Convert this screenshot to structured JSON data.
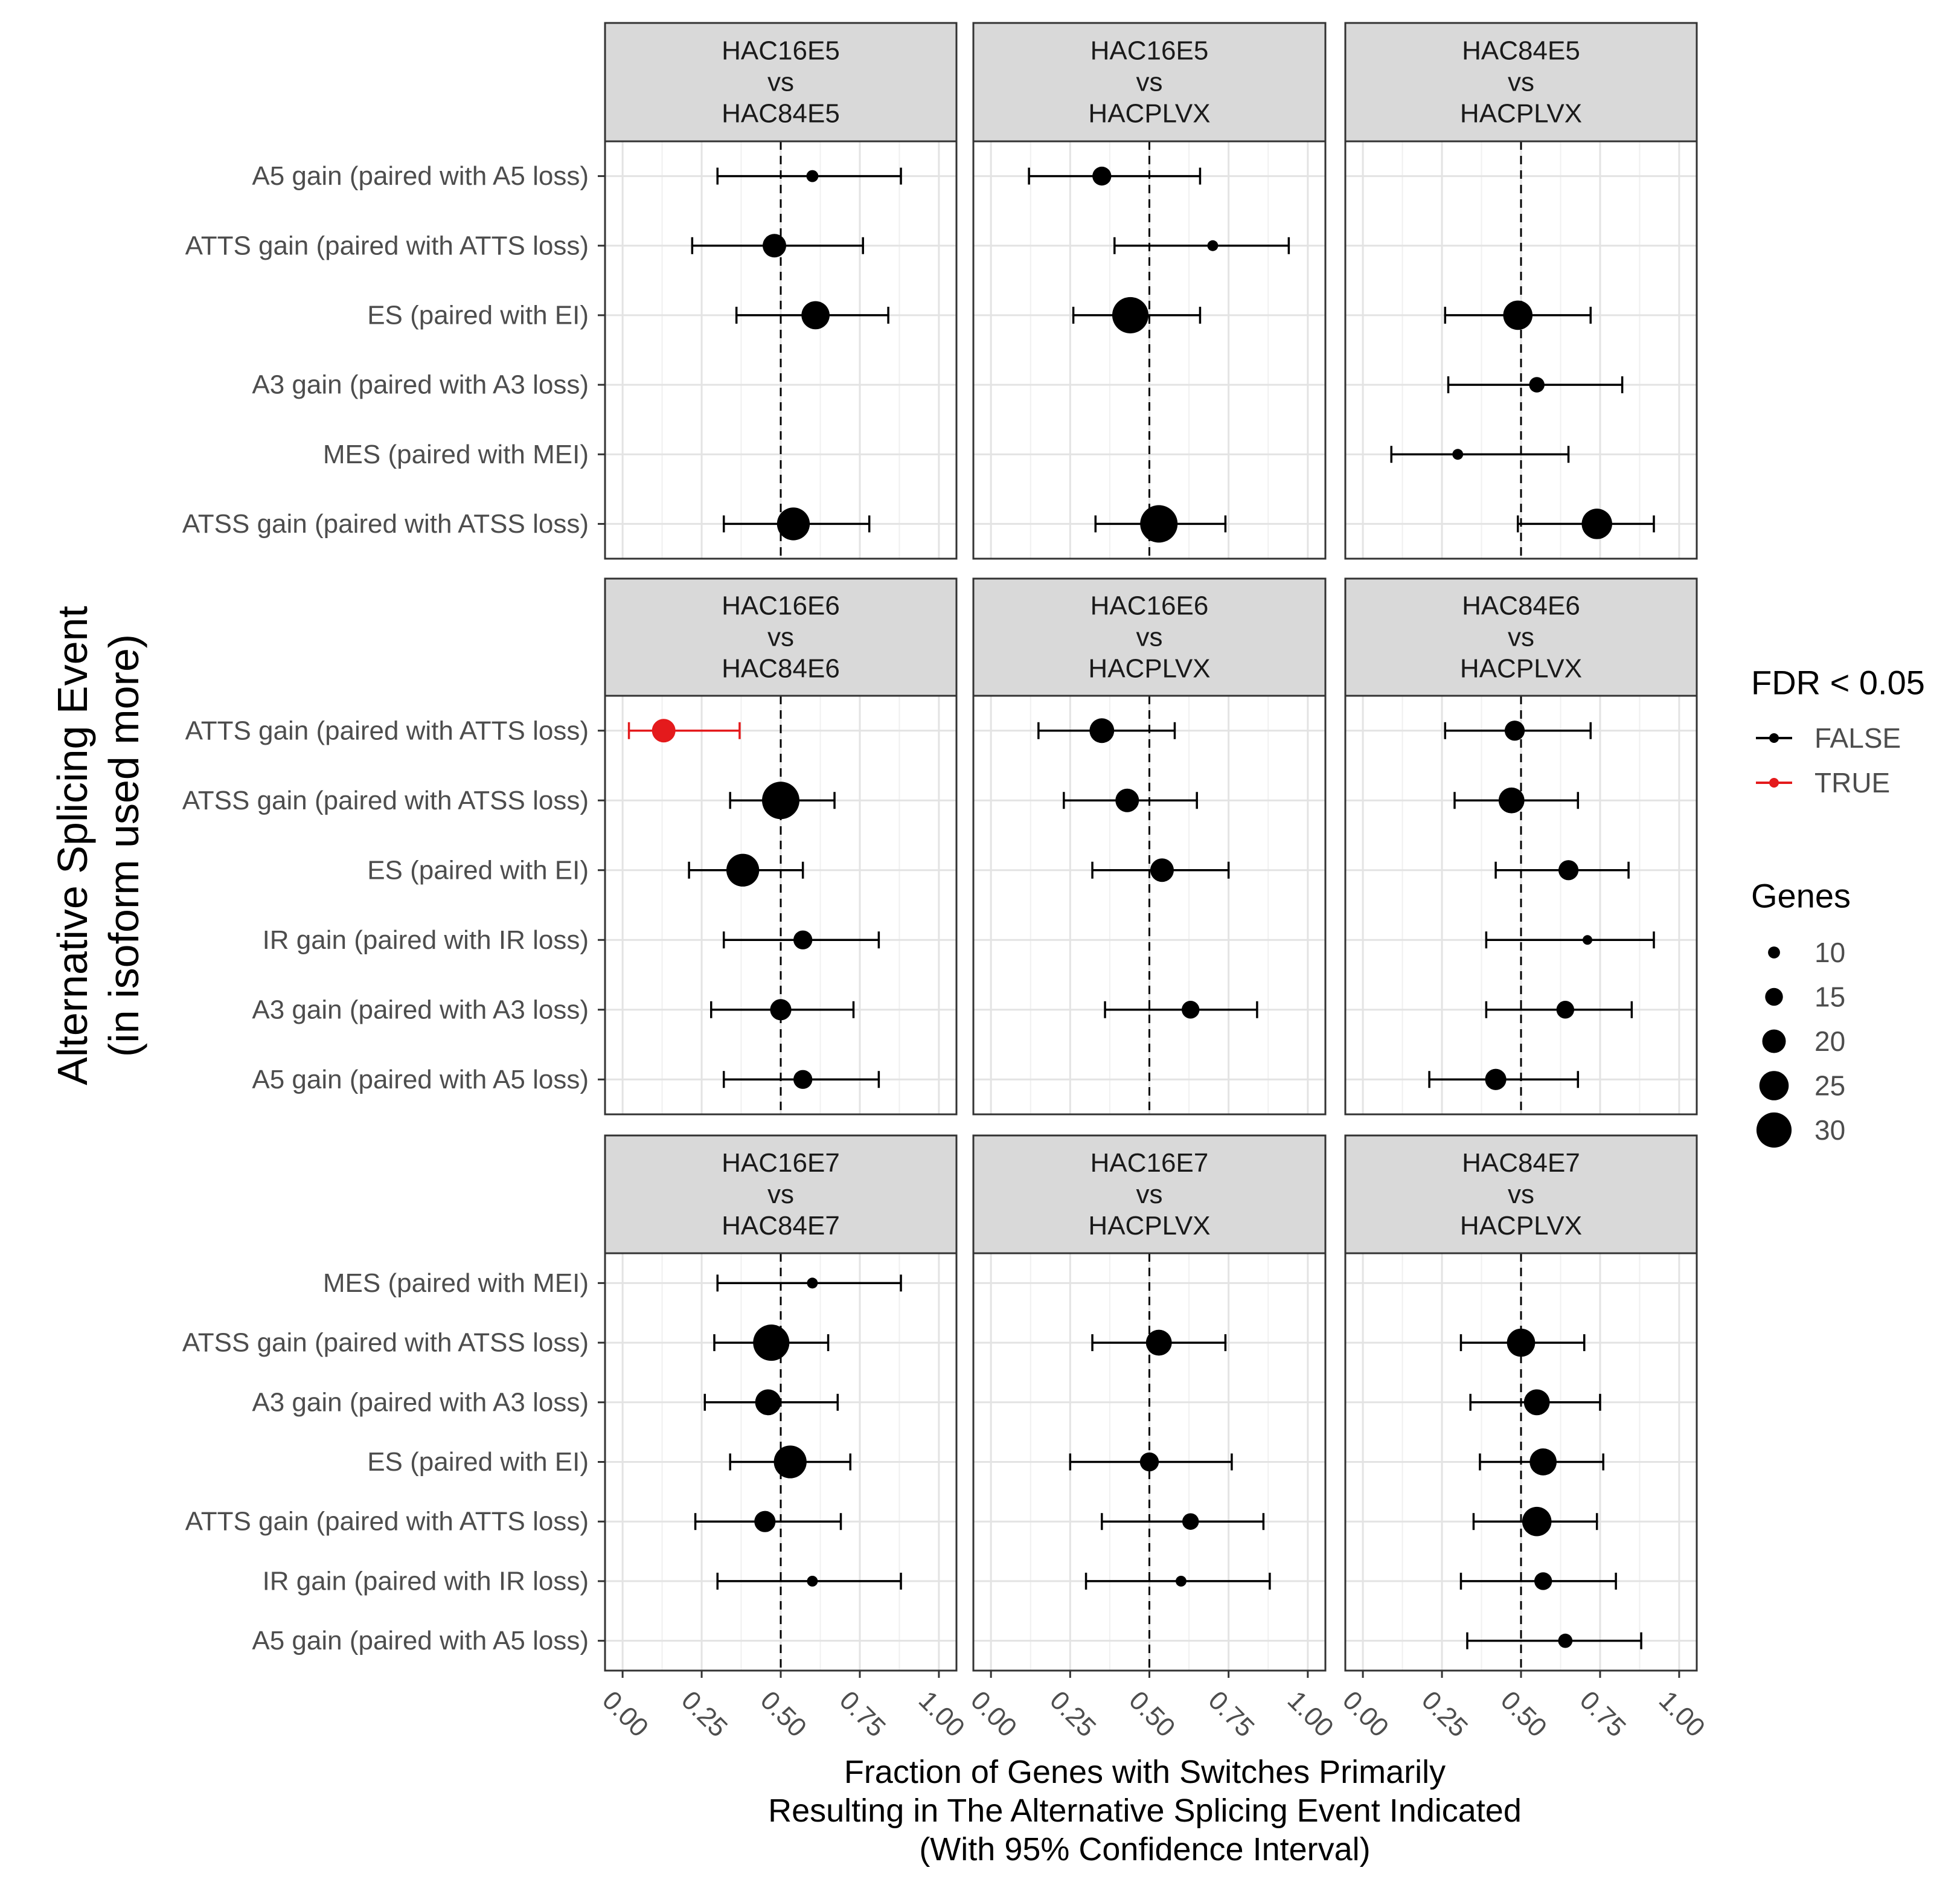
{
  "chart_data": {
    "type": "scatter",
    "subtype": "faceted dot plot with horizontal 95% confidence intervals",
    "xlabel": [
      "Fraction of Genes with Switches Primarily",
      "Resulting in The Alternative Splicing Event Indicated",
      "(With 95% Confidence Interval)"
    ],
    "ylabel": [
      "Alternative Splicing Event",
      "(in isoform used more)"
    ],
    "xlim": [
      0,
      1
    ],
    "x_ticks": [
      0,
      0.25,
      0.5,
      0.75,
      1
    ],
    "x_tick_labels": [
      "0.00",
      "0.25",
      "0.50",
      "0.75",
      "1.00"
    ],
    "reference_line": 0.5,
    "legend": {
      "position": "right",
      "color_title": "FDR < 0.05",
      "color_items": [
        {
          "label": "FALSE",
          "color": "#000000"
        },
        {
          "label": "TRUE",
          "color": "#e41a1c"
        }
      ],
      "size_title": "Genes",
      "size_items": [
        10,
        15,
        20,
        25,
        30
      ]
    },
    "facet_rows": [
      {
        "categories": [
          "A5 gain (paired with A5 loss)",
          "ATTS gain (paired with ATTS loss)",
          "ES (paired with EI)",
          "A3 gain (paired with A3 loss)",
          "MES (paired with MEI)",
          "ATSS gain (paired with ATSS loss)"
        ],
        "panels": [
          {
            "strip": [
              "HAC16E5",
              "vs",
              "HAC84E5"
            ],
            "points": [
              {
                "event": "A5 gain (paired with A5 loss)",
                "value": 0.6,
                "lower": 0.3,
                "upper": 0.88,
                "genes": 10,
                "fdr": false
              },
              {
                "event": "ATTS gain (paired with ATTS loss)",
                "value": 0.48,
                "lower": 0.22,
                "upper": 0.76,
                "genes": 20,
                "fdr": false
              },
              {
                "event": "ES (paired with EI)",
                "value": 0.61,
                "lower": 0.36,
                "upper": 0.84,
                "genes": 24,
                "fdr": false
              },
              {
                "event": "ATSS gain (paired with ATSS loss)",
                "value": 0.54,
                "lower": 0.32,
                "upper": 0.78,
                "genes": 28,
                "fdr": false
              }
            ]
          },
          {
            "strip": [
              "HAC16E5",
              "vs",
              "HACPLVX"
            ],
            "points": [
              {
                "event": "A5 gain (paired with A5 loss)",
                "value": 0.35,
                "lower": 0.12,
                "upper": 0.66,
                "genes": 16,
                "fdr": false
              },
              {
                "event": "ATTS gain (paired with ATTS loss)",
                "value": 0.7,
                "lower": 0.39,
                "upper": 0.94,
                "genes": 9,
                "fdr": false
              },
              {
                "event": "ES (paired with EI)",
                "value": 0.44,
                "lower": 0.26,
                "upper": 0.66,
                "genes": 31,
                "fdr": false
              },
              {
                "event": "ATSS gain (paired with ATSS loss)",
                "value": 0.53,
                "lower": 0.33,
                "upper": 0.74,
                "genes": 32,
                "fdr": false
              }
            ]
          },
          {
            "strip": [
              "HAC84E5",
              "vs",
              "HACPLVX"
            ],
            "points": [
              {
                "event": "ES (paired with EI)",
                "value": 0.49,
                "lower": 0.26,
                "upper": 0.72,
                "genes": 25,
                "fdr": false
              },
              {
                "event": "A3 gain (paired with A3 loss)",
                "value": 0.55,
                "lower": 0.27,
                "upper": 0.82,
                "genes": 13,
                "fdr": false
              },
              {
                "event": "MES (paired with MEI)",
                "value": 0.3,
                "lower": 0.09,
                "upper": 0.65,
                "genes": 9,
                "fdr": false
              },
              {
                "event": "ATSS gain (paired with ATSS loss)",
                "value": 0.74,
                "lower": 0.49,
                "upper": 0.92,
                "genes": 26,
                "fdr": false
              }
            ]
          }
        ]
      },
      {
        "categories": [
          "ATTS gain (paired with ATTS loss)",
          "ATSS gain (paired with ATSS loss)",
          "ES (paired with EI)",
          "IR gain (paired with IR loss)",
          "A3 gain (paired with A3 loss)",
          "A5 gain (paired with A5 loss)"
        ],
        "panels": [
          {
            "strip": [
              "HAC16E6",
              "vs",
              "HAC84E6"
            ],
            "points": [
              {
                "event": "ATTS gain (paired with ATTS loss)",
                "value": 0.13,
                "lower": 0.02,
                "upper": 0.37,
                "genes": 20,
                "fdr": true
              },
              {
                "event": "ATSS gain (paired with ATSS loss)",
                "value": 0.5,
                "lower": 0.34,
                "upper": 0.67,
                "genes": 32,
                "fdr": false
              },
              {
                "event": "ES (paired with EI)",
                "value": 0.38,
                "lower": 0.21,
                "upper": 0.57,
                "genes": 28,
                "fdr": false
              },
              {
                "event": "IR gain (paired with IR loss)",
                "value": 0.57,
                "lower": 0.32,
                "upper": 0.81,
                "genes": 16,
                "fdr": false
              },
              {
                "event": "A3 gain (paired with A3 loss)",
                "value": 0.5,
                "lower": 0.28,
                "upper": 0.73,
                "genes": 18,
                "fdr": false
              },
              {
                "event": "A5 gain (paired with A5 loss)",
                "value": 0.57,
                "lower": 0.32,
                "upper": 0.81,
                "genes": 16,
                "fdr": false
              }
            ]
          },
          {
            "strip": [
              "HAC16E6",
              "vs",
              "HACPLVX"
            ],
            "points": [
              {
                "event": "ATTS gain (paired with ATTS loss)",
                "value": 0.35,
                "lower": 0.15,
                "upper": 0.58,
                "genes": 21,
                "fdr": false
              },
              {
                "event": "ATSS gain (paired with ATSS loss)",
                "value": 0.43,
                "lower": 0.23,
                "upper": 0.65,
                "genes": 20,
                "fdr": false
              },
              {
                "event": "ES (paired with EI)",
                "value": 0.54,
                "lower": 0.32,
                "upper": 0.75,
                "genes": 20,
                "fdr": false
              },
              {
                "event": "A3 gain (paired with A3 loss)",
                "value": 0.63,
                "lower": 0.36,
                "upper": 0.84,
                "genes": 15,
                "fdr": false
              }
            ]
          },
          {
            "strip": [
              "HAC84E6",
              "vs",
              "HACPLVX"
            ],
            "points": [
              {
                "event": "ATTS gain (paired with ATTS loss)",
                "value": 0.48,
                "lower": 0.26,
                "upper": 0.72,
                "genes": 17,
                "fdr": false
              },
              {
                "event": "ATSS gain (paired with ATSS loss)",
                "value": 0.47,
                "lower": 0.29,
                "upper": 0.68,
                "genes": 22,
                "fdr": false
              },
              {
                "event": "ES (paired with EI)",
                "value": 0.65,
                "lower": 0.42,
                "upper": 0.84,
                "genes": 17,
                "fdr": false
              },
              {
                "event": "IR gain (paired with IR loss)",
                "value": 0.71,
                "lower": 0.39,
                "upper": 0.92,
                "genes": 8,
                "fdr": false
              },
              {
                "event": "A3 gain (paired with A3 loss)",
                "value": 0.64,
                "lower": 0.39,
                "upper": 0.85,
                "genes": 15,
                "fdr": false
              },
              {
                "event": "A5 gain (paired with A5 loss)",
                "value": 0.42,
                "lower": 0.21,
                "upper": 0.68,
                "genes": 18,
                "fdr": false
              }
            ]
          }
        ]
      },
      {
        "categories": [
          "MES (paired with MEI)",
          "ATSS gain (paired with ATSS loss)",
          "A3 gain (paired with A3 loss)",
          "ES (paired with EI)",
          "ATTS gain (paired with ATTS loss)",
          "IR gain (paired with IR loss)",
          "A5 gain (paired with A5 loss)"
        ],
        "panels": [
          {
            "strip": [
              "HAC16E7",
              "vs",
              "HAC84E7"
            ],
            "points": [
              {
                "event": "MES (paired with MEI)",
                "value": 0.6,
                "lower": 0.3,
                "upper": 0.88,
                "genes": 9,
                "fdr": false
              },
              {
                "event": "ATSS gain (paired with ATSS loss)",
                "value": 0.47,
                "lower": 0.29,
                "upper": 0.65,
                "genes": 31,
                "fdr": false
              },
              {
                "event": "A3 gain (paired with A3 loss)",
                "value": 0.46,
                "lower": 0.26,
                "upper": 0.68,
                "genes": 22,
                "fdr": false
              },
              {
                "event": "ES (paired with EI)",
                "value": 0.53,
                "lower": 0.34,
                "upper": 0.72,
                "genes": 28,
                "fdr": false
              },
              {
                "event": "ATTS gain (paired with ATTS loss)",
                "value": 0.45,
                "lower": 0.23,
                "upper": 0.69,
                "genes": 18,
                "fdr": false
              },
              {
                "event": "IR gain (paired with IR loss)",
                "value": 0.6,
                "lower": 0.3,
                "upper": 0.88,
                "genes": 9,
                "fdr": false
              }
            ]
          },
          {
            "strip": [
              "HAC16E7",
              "vs",
              "HACPLVX"
            ],
            "points": [
              {
                "event": "ATSS gain (paired with ATSS loss)",
                "value": 0.53,
                "lower": 0.32,
                "upper": 0.74,
                "genes": 22,
                "fdr": false
              },
              {
                "event": "ES (paired with EI)",
                "value": 0.5,
                "lower": 0.25,
                "upper": 0.76,
                "genes": 16,
                "fdr": false
              },
              {
                "event": "ATTS gain (paired with ATTS loss)",
                "value": 0.63,
                "lower": 0.35,
                "upper": 0.86,
                "genes": 14,
                "fdr": false
              },
              {
                "event": "IR gain (paired with IR loss)",
                "value": 0.6,
                "lower": 0.3,
                "upper": 0.88,
                "genes": 9,
                "fdr": false
              }
            ]
          },
          {
            "strip": [
              "HAC84E7",
              "vs",
              "HACPLVX"
            ],
            "points": [
              {
                "event": "ATSS gain (paired with ATSS loss)",
                "value": 0.5,
                "lower": 0.31,
                "upper": 0.7,
                "genes": 24,
                "fdr": false
              },
              {
                "event": "A3 gain (paired with A3 loss)",
                "value": 0.55,
                "lower": 0.34,
                "upper": 0.75,
                "genes": 22,
                "fdr": false
              },
              {
                "event": "ES (paired with EI)",
                "value": 0.57,
                "lower": 0.37,
                "upper": 0.76,
                "genes": 23,
                "fdr": false
              },
              {
                "event": "ATTS gain (paired with ATTS loss)",
                "value": 0.55,
                "lower": 0.35,
                "upper": 0.74,
                "genes": 25,
                "fdr": false
              },
              {
                "event": "IR gain (paired with IR loss)",
                "value": 0.57,
                "lower": 0.31,
                "upper": 0.8,
                "genes": 15,
                "fdr": false
              },
              {
                "event": "A5 gain (paired with A5 loss)",
                "value": 0.64,
                "lower": 0.33,
                "upper": 0.88,
                "genes": 12,
                "fdr": false
              }
            ]
          }
        ]
      }
    ]
  }
}
